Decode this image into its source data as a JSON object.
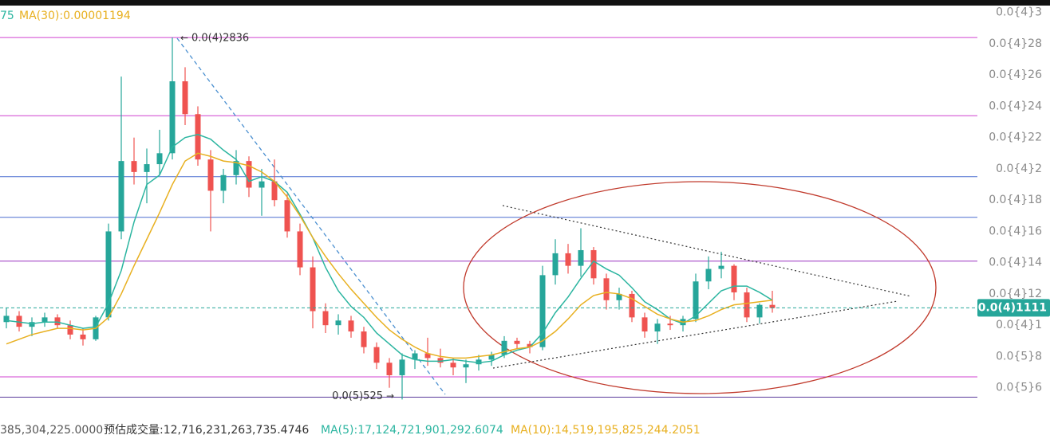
{
  "header": {
    "ma_left": "75",
    "ma30": "MA(30):0.00001194"
  },
  "footer": {
    "volume": "385,304,225.0000",
    "estimate": "预估成交量:12,716,231,263,735.4746",
    "ma5": "MA(5):17,124,721,901,292.6074",
    "ma10": "MA(10):14,519,195,825,244.2051"
  },
  "chart_data": {
    "type": "candlestick",
    "ylim": [
      4.2e-06,
      3.08e-05
    ],
    "yticks": [
      {
        "value": 3e-05,
        "label": "0.0{4}3"
      },
      {
        "value": 2.8e-05,
        "label": "0.0{4}28"
      },
      {
        "value": 2.6e-05,
        "label": "0.0{4}26"
      },
      {
        "value": 2.4e-05,
        "label": "0.0{4}24"
      },
      {
        "value": 2.2e-05,
        "label": "0.0{4}22"
      },
      {
        "value": 2e-05,
        "label": "0.0{4}2"
      },
      {
        "value": 1.8e-05,
        "label": "0.0{4}18"
      },
      {
        "value": 1.6e-05,
        "label": "0.0{4}16"
      },
      {
        "value": 1.4e-05,
        "label": "0.0{4}14"
      },
      {
        "value": 1.2e-05,
        "label": "0.0{4}12"
      },
      {
        "value": 1e-05,
        "label": "0.0{4}1"
      },
      {
        "value": 8e-06,
        "label": "0.0{5}8"
      },
      {
        "value": 6e-06,
        "label": "0.0{5}6"
      }
    ],
    "up_color": "#26a69a",
    "down_color": "#ef5350",
    "open": [
      1.02e-05,
      1.06e-05,
      9.9e-06,
      1.02e-05,
      1.05e-05,
      1e-05,
      9.4e-06,
      9.1e-06,
      1.05e-05,
      1.6e-05,
      2.05e-05,
      1.98e-05,
      2.03e-05,
      2.1e-05,
      2.56e-05,
      2.35e-05,
      2.06e-05,
      1.86e-05,
      1.96e-05,
      2.05e-05,
      1.88e-05,
      1.92e-05,
      1.8e-05,
      1.6e-05,
      1.37e-05,
      1.09e-05,
      1e-05,
      1.03e-05,
      9.6e-06,
      8.6e-06,
      7.6e-06,
      6.8e-06,
      7.8e-06,
      8.2e-06,
      7.9e-06,
      7.6e-06,
      7.3e-06,
      7.5e-06,
      7.8e-06,
      8.1e-06,
      9e-06,
      8.8e-06,
      8.6e-06,
      1.32e-05,
      1.46e-05,
      1.38e-05,
      1.48e-05,
      1.3e-05,
      1.16e-05,
      1.2e-05,
      1.05e-05,
      9.6e-06,
      1.01e-05,
      1e-05,
      1.04e-05,
      1.28e-05,
      1.36e-05,
      1.38e-05,
      1.21e-05,
      1.05e-05,
      1.13e-05
    ],
    "high": [
      1.11e-05,
      1.09e-05,
      1.05e-05,
      1.08e-05,
      1.07e-05,
      1.03e-05,
      9.8e-06,
      1.06e-05,
      1.65e-05,
      2.59e-05,
      2.2e-05,
      2.13e-05,
      2.25e-05,
      2.84e-05,
      2.65e-05,
      2.4e-05,
      2.12e-05,
      2e-05,
      2.12e-05,
      2.08e-05,
      2e-05,
      2.06e-05,
      1.84e-05,
      1.65e-05,
      1.44e-05,
      1.14e-05,
      1.07e-05,
      1.06e-05,
      9.9e-06,
      8.9e-06,
      7.9e-06,
      8.2e-06,
      8.4e-06,
      9.2e-06,
      8.5e-06,
      7.9e-06,
      7.8e-06,
      8.1e-06,
      8.3e-06,
      9.3e-06,
      9.2e-06,
      9e-06,
      1.38e-05,
      1.55e-05,
      1.52e-05,
      1.62e-05,
      1.5e-05,
      1.33e-05,
      1.24e-05,
      1.22e-05,
      1.08e-05,
      1.04e-05,
      1.06e-05,
      1.06e-05,
      1.33e-05,
      1.44e-05,
      1.47e-05,
      1.39e-05,
      1.24e-05,
      1.14e-05,
      1.22e-05
    ],
    "low": [
      9.8e-06,
      9.6e-06,
      9.3e-06,
      9.9e-06,
      9.8e-06,
      9.1e-06,
      8.7e-06,
      9e-06,
      1.03e-05,
      1.55e-05,
      1.9e-05,
      1.78e-05,
      1.96e-05,
      2.06e-05,
      2.28e-05,
      2.02e-05,
      1.6e-05,
      1.78e-05,
      1.9e-05,
      1.82e-05,
      1.7e-05,
      1.76e-05,
      1.56e-05,
      1.32e-05,
      9.8e-06,
      9.5e-06,
      9.4e-06,
      9.2e-06,
      8.2e-06,
      7.2e-06,
      6e-06,
      5.25e-06,
      7.2e-06,
      7.4e-06,
      7.3e-06,
      6.8e-06,
      6.3e-06,
      7.1e-06,
      7.4e-06,
      7.9e-06,
      8.5e-06,
      8.2e-06,
      8.4e-06,
      1.26e-05,
      1.33e-05,
      1.31e-05,
      1.26e-05,
      1.1e-05,
      1.1e-05,
      1.02e-05,
      9.2e-06,
      8.8e-06,
      9.7e-06,
      9.6e-06,
      1.02e-05,
      1.23e-05,
      1.3e-05,
      1.16e-05,
      1.02e-05,
      1.01e-05,
      1.08e-05
    ],
    "close": [
      1.06e-05,
      9.9e-06,
      1.02e-05,
      1.05e-05,
      1e-05,
      9.4e-06,
      9.1e-06,
      1.05e-05,
      1.6e-05,
      2.05e-05,
      1.98e-05,
      2.03e-05,
      2.1e-05,
      2.56e-05,
      2.35e-05,
      2.06e-05,
      1.86e-05,
      1.96e-05,
      2.05e-05,
      1.88e-05,
      1.92e-05,
      1.8e-05,
      1.6e-05,
      1.37e-05,
      1.09e-05,
      1e-05,
      1.03e-05,
      9.6e-06,
      8.6e-06,
      7.6e-06,
      6.8e-06,
      7.8e-06,
      8.2e-06,
      7.9e-06,
      7.6e-06,
      7.3e-06,
      7.5e-06,
      7.8e-06,
      8.1e-06,
      9e-06,
      8.8e-06,
      8.6e-06,
      1.32e-05,
      1.46e-05,
      1.38e-05,
      1.48e-05,
      1.3e-05,
      1.16e-05,
      1.2e-05,
      1.05e-05,
      9.6e-06,
      1.01e-05,
      1e-05,
      1.04e-05,
      1.28e-05,
      1.36e-05,
      1.38e-05,
      1.21e-05,
      1.05e-05,
      1.13e-05,
      1.11e-05
    ],
    "lines": [
      {
        "color": "#2bb5a0",
        "values": [
          1.03e-05,
          1.02e-05,
          1.01e-05,
          1.02e-05,
          1.02e-05,
          1e-05,
          9.8e-06,
          9.9e-06,
          1.14e-05,
          1.35e-05,
          1.66e-05,
          1.9e-05,
          1.96e-05,
          2.14e-05,
          2.2e-05,
          2.22e-05,
          2.19e-05,
          2.12e-05,
          2.06e-05,
          1.92e-05,
          1.95e-05,
          1.92e-05,
          1.85e-05,
          1.71e-05,
          1.56e-05,
          1.37e-05,
          1.22e-05,
          1.12e-05,
          1.05e-05,
          9.5e-06,
          8.8e-06,
          8.1e-06,
          7.8e-06,
          7.7e-06,
          7.7e-06,
          7.8e-06,
          7.7e-06,
          7.6e-06,
          7.7e-06,
          8.1e-06,
          8.4e-06,
          8.6e-06,
          9.5e-06,
          1.08e-05,
          1.18e-05,
          1.3e-05,
          1.41e-05,
          1.36e-05,
          1.32e-05,
          1.24e-05,
          1.15e-05,
          1.1e-05,
          1.04e-05,
          1.01e-05,
          1.06e-05,
          1.14e-05,
          1.22e-05,
          1.25e-05,
          1.25e-05,
          1.21e-05,
          1.16e-05
        ]
      },
      {
        "color": "#e8b020",
        "values": [
          8.8e-06,
          9.1e-06,
          9.4e-06,
          9.6e-06,
          9.8e-06,
          9.8e-06,
          9.7e-06,
          9.8e-06,
          1.05e-05,
          1.2e-05,
          1.38e-05,
          1.55e-05,
          1.72e-05,
          1.9e-05,
          2.05e-05,
          2.1e-05,
          2.08e-05,
          2.05e-05,
          2.04e-05,
          2.02e-05,
          1.98e-05,
          1.92e-05,
          1.82e-05,
          1.7e-05,
          1.56e-05,
          1.44e-05,
          1.33e-05,
          1.23e-05,
          1.14e-05,
          1.05e-05,
          9.7e-06,
          9.1e-06,
          8.6e-06,
          8.2e-06,
          8e-06,
          7.9e-06,
          7.9e-06,
          8e-06,
          8.1e-06,
          8.3e-06,
          8.5e-06,
          8.6e-06,
          9e-06,
          9.6e-06,
          1.04e-05,
          1.13e-05,
          1.19e-05,
          1.21e-05,
          1.2e-05,
          1.17e-05,
          1.12e-05,
          1.07e-05,
          1.04e-05,
          1.02e-05,
          1.03e-05,
          1.06e-05,
          1.1e-05,
          1.13e-05,
          1.14e-05,
          1.15e-05,
          1.16e-05
        ]
      }
    ],
    "levels": [
      {
        "value": 2.84e-05,
        "color": "#d040d0"
      },
      {
        "value": 2.34e-05,
        "color": "#d040d0"
      },
      {
        "value": 1.95e-05,
        "color": "#4a6fd0"
      },
      {
        "value": 1.69e-05,
        "color": "#4a6fd0"
      },
      {
        "value": 1.41e-05,
        "color": "#9a30c0"
      },
      {
        "value": 6.7e-06,
        "color": "#d040d0"
      },
      {
        "value": 5.4e-06,
        "color": "#5a3a9a"
      }
    ],
    "last_price": {
      "value": 1.111e-05,
      "label": "0.0(4)1111",
      "color": "#26a69a"
    },
    "high_note": {
      "value": 2.836e-05,
      "label": "0.0(4)2836"
    },
    "low_note": {
      "value": 5.25e-06,
      "label": "0.0(5)525"
    }
  }
}
